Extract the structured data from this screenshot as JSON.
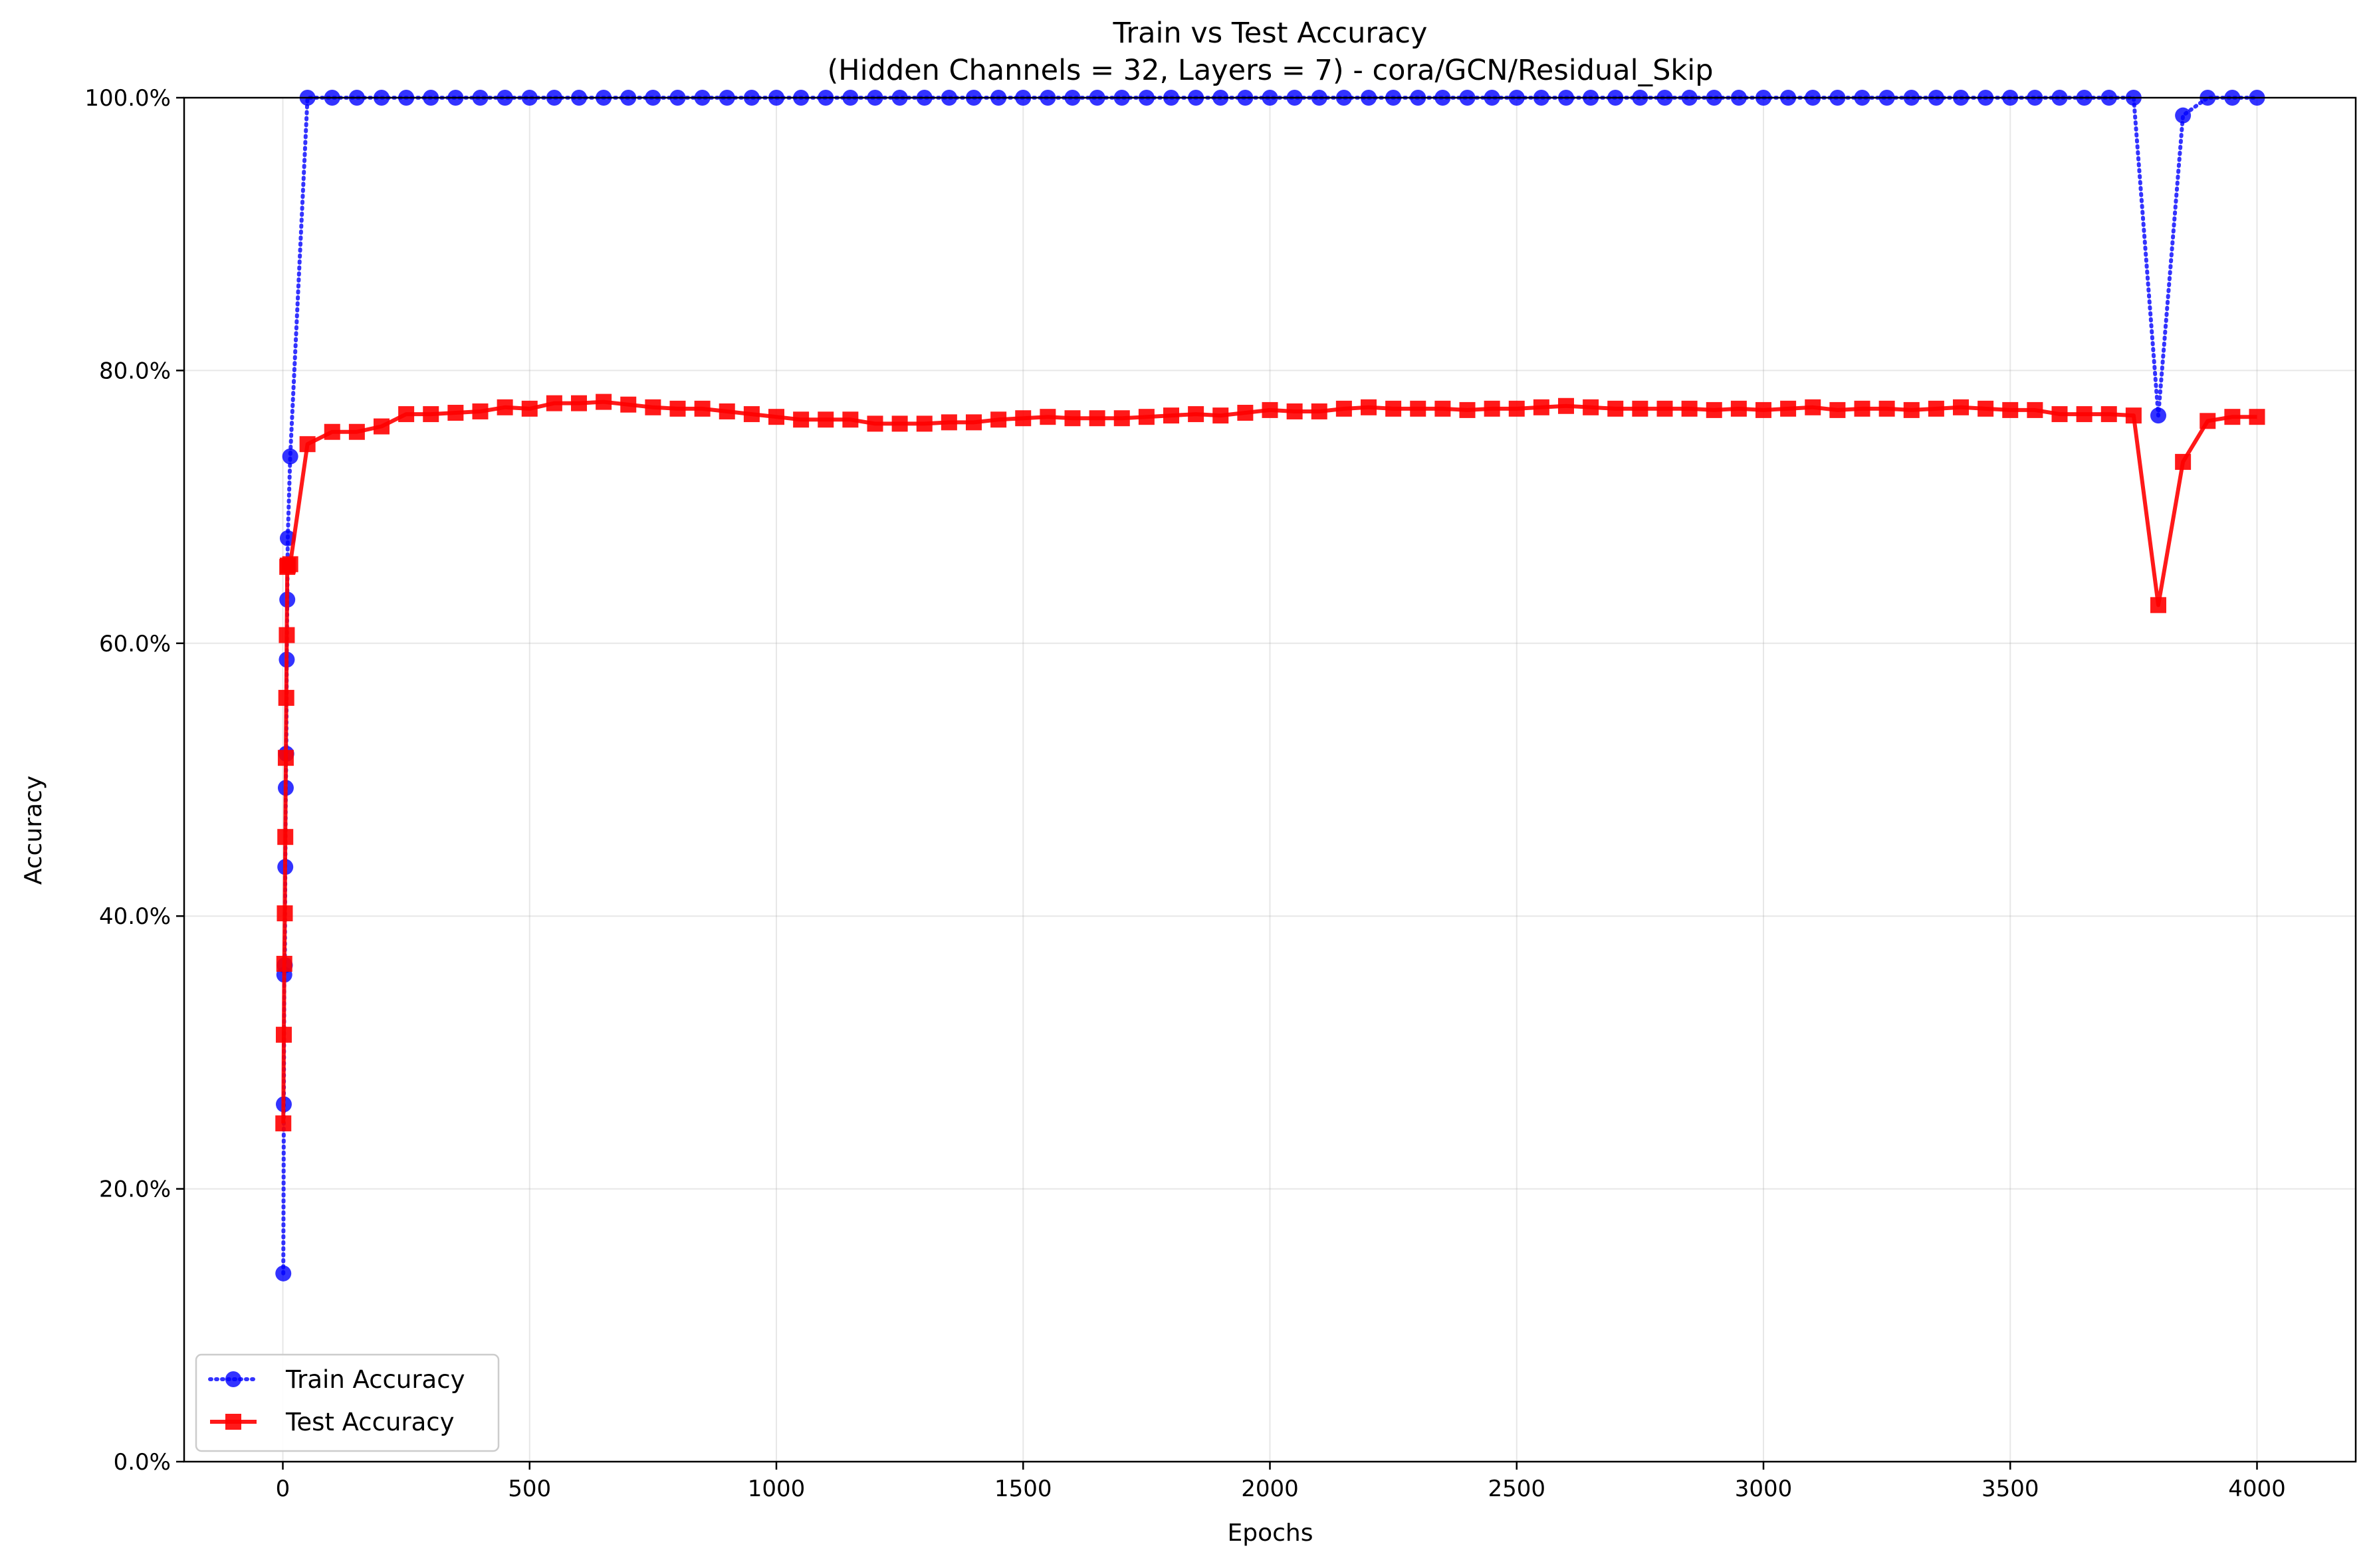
{
  "chart_data": {
    "type": "line",
    "title": "Train vs Test Accuracy",
    "subtitle": "(Hidden Channels = 32, Layers = 7) - cora/GCN/Residual_Skip",
    "xlabel": "Epochs",
    "ylabel": "Accuracy",
    "xlim": [
      -200,
      4200
    ],
    "ylim": [
      0,
      1
    ],
    "x_ticks": [
      0,
      500,
      1000,
      1500,
      2000,
      2500,
      3000,
      3500,
      4000
    ],
    "x_tick_labels": [
      "0",
      "500",
      "1000",
      "1500",
      "2000",
      "2500",
      "3000",
      "3500",
      "4000"
    ],
    "y_ticks": [
      0,
      0.2,
      0.4,
      0.6,
      0.8,
      1.0
    ],
    "y_tick_labels": [
      "0.0%",
      "20.0%",
      "40.0%",
      "60.0%",
      "80.0%",
      "100.0%"
    ],
    "grid": true,
    "legend_position": "lower-left",
    "series": [
      {
        "name": "Train Accuracy",
        "color": "#0000ff",
        "line_style": "dotted",
        "marker": "circle",
        "x": [
          1,
          2,
          3,
          4,
          5,
          6,
          7,
          8,
          9,
          10,
          15,
          50,
          100,
          150,
          200,
          250,
          300,
          350,
          400,
          450,
          500,
          550,
          600,
          650,
          700,
          750,
          800,
          850,
          900,
          950,
          1000,
          1050,
          1100,
          1150,
          1200,
          1250,
          1300,
          1350,
          1400,
          1450,
          1500,
          1550,
          1600,
          1650,
          1700,
          1750,
          1800,
          1850,
          1900,
          1950,
          2000,
          2050,
          2100,
          2150,
          2200,
          2250,
          2300,
          2350,
          2400,
          2450,
          2500,
          2550,
          2600,
          2650,
          2700,
          2750,
          2800,
          2850,
          2900,
          2950,
          3000,
          3050,
          3100,
          3150,
          3200,
          3250,
          3300,
          3350,
          3400,
          3450,
          3500,
          3550,
          3600,
          3650,
          3700,
          3750,
          3800,
          3850,
          3900,
          3950,
          4000
        ],
        "values": [
          0.138,
          0.262,
          0.357,
          0.364,
          0.436,
          0.494,
          0.519,
          0.588,
          0.632,
          0.677,
          0.737,
          1.0,
          1.0,
          1.0,
          1.0,
          1.0,
          1.0,
          1.0,
          1.0,
          1.0,
          1.0,
          1.0,
          1.0,
          1.0,
          1.0,
          1.0,
          1.0,
          1.0,
          1.0,
          1.0,
          1.0,
          1.0,
          1.0,
          1.0,
          1.0,
          1.0,
          1.0,
          1.0,
          1.0,
          1.0,
          1.0,
          1.0,
          1.0,
          1.0,
          1.0,
          1.0,
          1.0,
          1.0,
          1.0,
          1.0,
          1.0,
          1.0,
          1.0,
          1.0,
          1.0,
          1.0,
          1.0,
          1.0,
          1.0,
          1.0,
          1.0,
          1.0,
          1.0,
          1.0,
          1.0,
          1.0,
          1.0,
          1.0,
          1.0,
          1.0,
          1.0,
          1.0,
          1.0,
          1.0,
          1.0,
          1.0,
          1.0,
          1.0,
          1.0,
          1.0,
          1.0,
          1.0,
          1.0,
          1.0,
          1.0,
          1.0,
          0.767,
          0.987,
          1.0,
          1.0,
          1.0
        ]
      },
      {
        "name": "Test Accuracy",
        "color": "#ff0000",
        "line_style": "solid",
        "marker": "square",
        "x": [
          1,
          2,
          3,
          4,
          5,
          6,
          7,
          8,
          9,
          10,
          15,
          50,
          100,
          150,
          200,
          250,
          300,
          350,
          400,
          450,
          500,
          550,
          600,
          650,
          700,
          750,
          800,
          850,
          900,
          950,
          1000,
          1050,
          1100,
          1150,
          1200,
          1250,
          1300,
          1350,
          1400,
          1450,
          1500,
          1550,
          1600,
          1650,
          1700,
          1750,
          1800,
          1850,
          1900,
          1950,
          2000,
          2050,
          2100,
          2150,
          2200,
          2250,
          2300,
          2350,
          2400,
          2450,
          2500,
          2550,
          2600,
          2650,
          2700,
          2750,
          2800,
          2850,
          2900,
          2950,
          3000,
          3050,
          3100,
          3150,
          3200,
          3250,
          3300,
          3350,
          3400,
          3450,
          3500,
          3550,
          3600,
          3650,
          3700,
          3750,
          3800,
          3850,
          3900,
          3950,
          4000
        ],
        "values": [
          0.248,
          0.313,
          0.365,
          0.402,
          0.458,
          0.516,
          0.56,
          0.606,
          0.656,
          0.657,
          0.658,
          0.746,
          0.755,
          0.755,
          0.759,
          0.768,
          0.768,
          0.769,
          0.77,
          0.773,
          0.772,
          0.776,
          0.776,
          0.777,
          0.775,
          0.773,
          0.772,
          0.772,
          0.77,
          0.768,
          0.766,
          0.764,
          0.764,
          0.764,
          0.761,
          0.761,
          0.761,
          0.762,
          0.762,
          0.764,
          0.765,
          0.766,
          0.765,
          0.765,
          0.765,
          0.766,
          0.767,
          0.768,
          0.767,
          0.769,
          0.771,
          0.77,
          0.77,
          0.772,
          0.773,
          0.772,
          0.772,
          0.772,
          0.771,
          0.772,
          0.772,
          0.773,
          0.774,
          0.773,
          0.772,
          0.772,
          0.772,
          0.772,
          0.771,
          0.772,
          0.771,
          0.772,
          0.773,
          0.771,
          0.772,
          0.772,
          0.771,
          0.772,
          0.773,
          0.772,
          0.771,
          0.771,
          0.768,
          0.768,
          0.768,
          0.767,
          0.628,
          0.733,
          0.763,
          0.766,
          0.766
        ]
      }
    ]
  }
}
